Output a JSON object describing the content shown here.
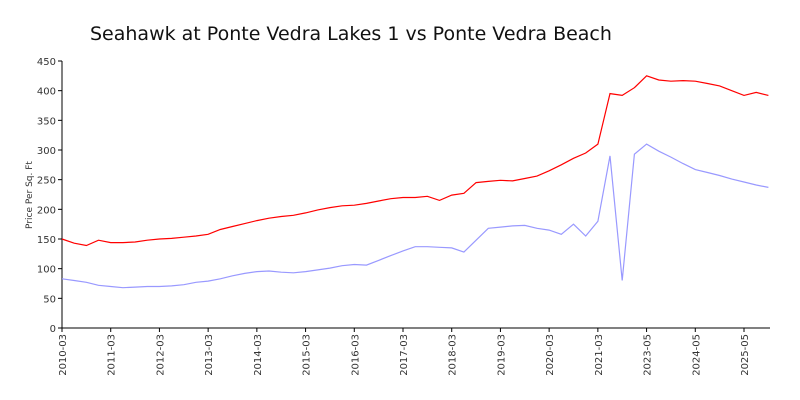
{
  "chart_data": {
    "type": "line",
    "title": "Seahawk at Ponte Vedra Lakes 1 vs Ponte Vedra Beach",
    "y_label": "Price Per Sq. Ft",
    "categories": [
      "2010-03",
      null,
      null,
      null,
      "2011-03",
      null,
      null,
      null,
      "2012-03",
      null,
      null,
      null,
      "2013-03",
      null,
      null,
      null,
      "2014-03",
      null,
      null,
      null,
      "2015-03",
      null,
      null,
      null,
      "2016-03",
      null,
      null,
      null,
      "2017-03",
      null,
      null,
      null,
      "2018-03",
      null,
      null,
      null,
      "2019-03",
      null,
      null,
      null,
      "2020-03",
      null,
      null,
      null,
      "2021-03",
      null,
      null,
      null,
      "2023-05",
      null,
      null,
      null,
      "2024-05",
      null,
      null,
      null,
      "2025-05",
      null,
      null
    ],
    "series": [
      {
        "color": "#ff0000",
        "values": [
          150,
          143,
          139,
          148,
          144,
          144,
          145,
          148,
          150,
          151,
          153,
          155,
          158,
          166,
          171,
          176,
          181,
          185,
          188,
          190,
          194,
          199,
          203,
          206,
          207,
          210,
          214,
          218,
          220,
          220,
          222,
          215,
          224,
          227,
          245,
          247,
          249,
          248,
          252,
          256,
          265,
          275,
          286,
          295,
          310,
          395,
          392,
          405,
          425,
          418,
          416,
          417,
          416,
          412,
          408,
          400,
          392,
          397,
          392
        ]
      },
      {
        "color": "#9999ff",
        "values": [
          83,
          80,
          77,
          72,
          70,
          68,
          69,
          70,
          70,
          71,
          73,
          77,
          79,
          83,
          88,
          92,
          95,
          96,
          94,
          93,
          95,
          98,
          101,
          105,
          107,
          106,
          114,
          122,
          130,
          137,
          137,
          136,
          135,
          128,
          148,
          168,
          170,
          172,
          173,
          168,
          165,
          158,
          175,
          155,
          180,
          290,
          80,
          293,
          310,
          298,
          288,
          277,
          267,
          262,
          257,
          251,
          246,
          241,
          237
        ]
      }
    ],
    "ylim": [
      0,
      450
    ],
    "yticks": [
      0,
      50,
      100,
      150,
      200,
      250,
      300,
      350,
      400,
      450
    ]
  }
}
